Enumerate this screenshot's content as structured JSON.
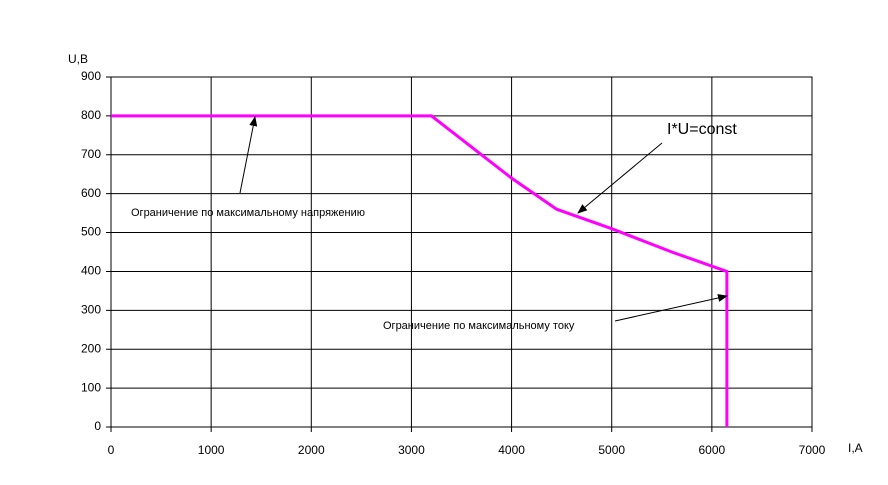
{
  "chart_data": {
    "type": "line",
    "y_label": "U,В",
    "x_label": "I,A",
    "x": [
      0,
      3200,
      3700,
      4000,
      4450,
      5000,
      5600,
      6150,
      6150
    ],
    "values": [
      800,
      800,
      700,
      640,
      560,
      510,
      450,
      400,
      0
    ],
    "color": "#ff00ff",
    "xlim": [
      0,
      7000
    ],
    "ylim": [
      0,
      900
    ],
    "xticks": [
      0,
      1000,
      2000,
      3000,
      4000,
      5000,
      6000,
      7000
    ],
    "yticks": [
      0,
      100,
      200,
      300,
      400,
      500,
      600,
      700,
      800,
      900
    ],
    "grid": true,
    "annotations": [
      "I*U=const",
      "Ограничение по максимальному напряжению",
      "Ограничение по максимальному току"
    ]
  }
}
